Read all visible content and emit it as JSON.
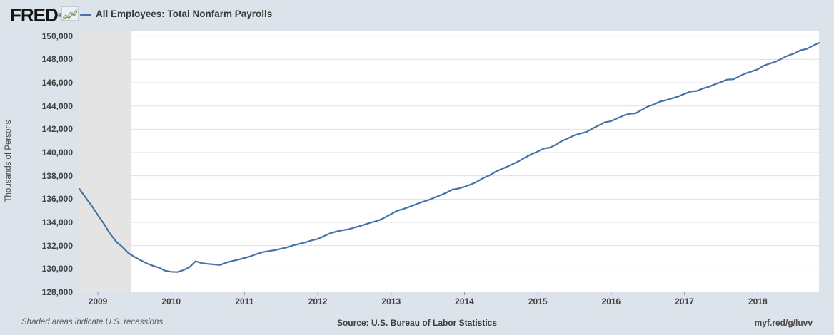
{
  "header": {
    "logo_text": "FRED",
    "logo_registered": "®",
    "series_title": "All Employees: Total Nonfarm Payrolls",
    "legend_color": "#4572a7"
  },
  "footer": {
    "note": "Shaded areas indicate U.S. recessions",
    "source": "Source: U.S. Bureau of Labor Statistics",
    "link": "myf.red/g/luvv"
  },
  "colors": {
    "page_bg": "#dce3eb",
    "plot_bg": "#ffffff",
    "grid": "#e0e0e0",
    "axis": "#999999",
    "recession_band": "#e4e4e4",
    "line": "#4572a7",
    "text": "#424242"
  },
  "chart_data": {
    "type": "line",
    "title": "All Employees: Total Nonfarm Payrolls",
    "ylabel": "Thousands of Persons",
    "units": "Thousands of Persons",
    "frequency": "monthly",
    "x_start": "2008-10",
    "x_end": "2018-11",
    "ylim": [
      128000,
      150000
    ],
    "ytick_step": 2000,
    "yticks": [
      "128,000",
      "130,000",
      "132,000",
      "134,000",
      "136,000",
      "138,000",
      "140,000",
      "142,000",
      "144,000",
      "146,000",
      "148,000",
      "150,000"
    ],
    "xticks": [
      "2009",
      "2010",
      "2011",
      "2012",
      "2013",
      "2014",
      "2015",
      "2016",
      "2017",
      "2018"
    ],
    "grid": true,
    "legend_position": "top-left",
    "recession_band": {
      "start": "2008-10",
      "end": "2009-06",
      "label": "U.S. recession"
    },
    "series": [
      {
        "name": "All Employees: Total Nonfarm Payrolls",
        "color": "#4572a7",
        "values": [
          136870,
          136130,
          135420,
          134630,
          133870,
          133020,
          132340,
          131900,
          131360,
          131030,
          130750,
          130480,
          130280,
          130110,
          129850,
          129760,
          129730,
          129900,
          130160,
          130660,
          130500,
          130440,
          130390,
          130340,
          130540,
          130680,
          130800,
          130940,
          131090,
          131280,
          131450,
          131530,
          131620,
          131740,
          131850,
          132030,
          132160,
          132290,
          132450,
          132580,
          132820,
          133060,
          133210,
          133320,
          133400,
          133560,
          133700,
          133870,
          134030,
          134180,
          134430,
          134720,
          135000,
          135150,
          135340,
          135540,
          135740,
          135900,
          136110,
          136320,
          136540,
          136820,
          136900,
          137060,
          137250,
          137480,
          137790,
          138020,
          138330,
          138570,
          138790,
          139040,
          139290,
          139600,
          139870,
          140090,
          140350,
          140430,
          140690,
          141010,
          141240,
          141490,
          141640,
          141780,
          142080,
          142340,
          142610,
          142700,
          142940,
          143170,
          143330,
          143370,
          143660,
          143950,
          144130,
          144380,
          144500,
          144660,
          144820,
          145040,
          145240,
          145290,
          145500,
          145650,
          145870,
          146060,
          146270,
          146290,
          146560,
          146800,
          146970,
          147150,
          147470,
          147650,
          147820,
          148090,
          148340,
          148510,
          148790,
          148900,
          149170,
          149420
        ]
      }
    ]
  }
}
